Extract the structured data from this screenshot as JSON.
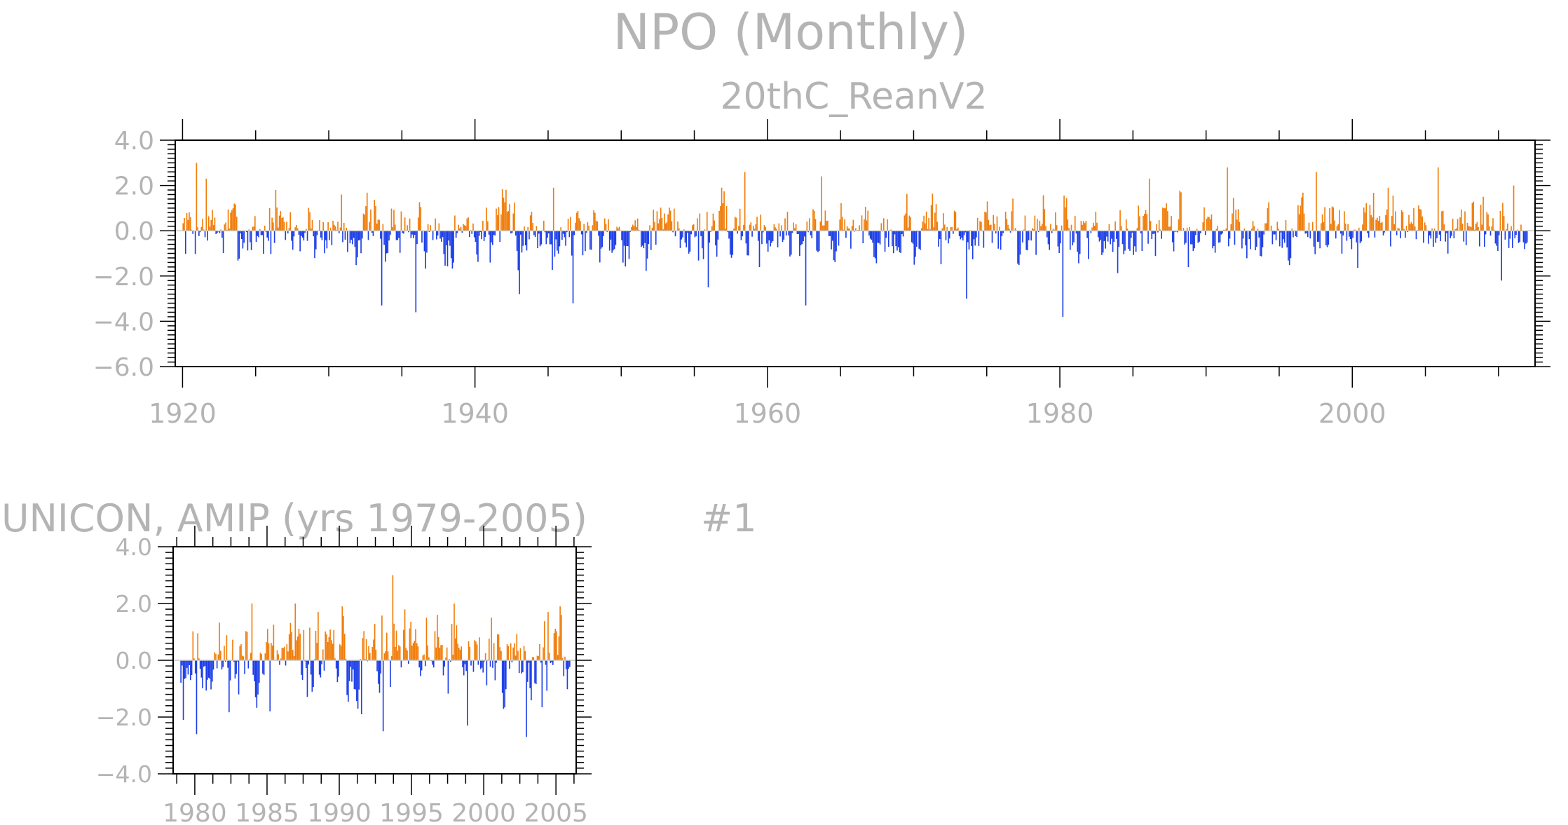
{
  "page": {
    "title": "NPO (Monthly)",
    "subtitle": "20thC_ReanV2",
    "panel2_title": "UNICON, AMIP (yrs 1979-2005)",
    "panel2_tag": "#1"
  },
  "colors": {
    "positive": "#f07d0a",
    "negative": "#1c3ee6",
    "axis": "#000000",
    "text": "#b4b4b4",
    "zero_line": "#c8c8c8"
  },
  "chart_data": [
    {
      "type": "bar",
      "title": "NPO (Monthly)",
      "subtitle": "20thC_ReanV2",
      "x_range": [
        1919.5,
        2012.5
      ],
      "data_start": 1920.0,
      "data_end": 2012.0,
      "ylim": [
        -6.0,
        4.0
      ],
      "yticks": [
        -6.0,
        -4.0,
        -2.0,
        0.0,
        2.0,
        4.0
      ],
      "ytick_labels": [
        "−6.0",
        "−4.0",
        "−2.0",
        "0.0",
        "2.0",
        "4.0"
      ],
      "xticks": [
        1920,
        1940,
        1960,
        1980,
        2000
      ],
      "xtick_labels": [
        "1920",
        "1940",
        "1960",
        "1980",
        "2000"
      ],
      "grid": false,
      "legend": "none",
      "peaks": [
        {
          "x": 1920.9,
          "y": 3.0
        },
        {
          "x": 1921.6,
          "y": 2.3
        },
        {
          "x": 1926.3,
          "y": 1.8
        },
        {
          "x": 1930.8,
          "y": 1.6
        },
        {
          "x": 1933.6,
          "y": -3.3
        },
        {
          "x": 1935.9,
          "y": -3.6
        },
        {
          "x": 1943.0,
          "y": -2.8
        },
        {
          "x": 1945.3,
          "y": 1.9
        },
        {
          "x": 1946.7,
          "y": -3.2
        },
        {
          "x": 1955.9,
          "y": -2.5
        },
        {
          "x": 1958.4,
          "y": 2.6
        },
        {
          "x": 1962.6,
          "y": -3.3
        },
        {
          "x": 1963.7,
          "y": 2.4
        },
        {
          "x": 1973.6,
          "y": -3.0
        },
        {
          "x": 1980.2,
          "y": -3.8
        },
        {
          "x": 1986.1,
          "y": 2.3
        },
        {
          "x": 1991.4,
          "y": 2.8
        },
        {
          "x": 1997.5,
          "y": 2.6
        },
        {
          "x": 2005.8,
          "y": 2.8
        },
        {
          "x": 2010.2,
          "y": -2.2
        },
        {
          "x": 2011.0,
          "y": 2.0
        }
      ]
    },
    {
      "type": "bar",
      "title": "UNICON, AMIP (yrs 1979-2005)",
      "x_range": [
        1978.5,
        2006.4
      ],
      "data_start": 1979.0,
      "data_end": 2006.0,
      "ylim": [
        -4.0,
        4.0
      ],
      "yticks": [
        -4.0,
        -2.0,
        0.0,
        2.0,
        4.0
      ],
      "ytick_labels": [
        "−4.0",
        "−2.0",
        "0.0",
        "2.0",
        "4.0"
      ],
      "xticks": [
        1980,
        1985,
        1990,
        1995,
        2000,
        2005
      ],
      "xtick_labels": [
        "1980",
        "1985",
        "1990",
        "1995",
        "2000",
        "2005"
      ],
      "grid": false,
      "legend": "none",
      "peaks": [
        {
          "x": 1979.2,
          "y": -2.1
        },
        {
          "x": 1980.1,
          "y": -2.6
        },
        {
          "x": 1983.0,
          "y": -1.2
        },
        {
          "x": 1983.9,
          "y": 2.0
        },
        {
          "x": 1985.2,
          "y": -1.8
        },
        {
          "x": 1986.9,
          "y": 2.0
        },
        {
          "x": 1988.5,
          "y": 1.7
        },
        {
          "x": 1990.2,
          "y": 1.9
        },
        {
          "x": 1991.5,
          "y": -1.9
        },
        {
          "x": 1993.0,
          "y": -2.5
        },
        {
          "x": 1993.7,
          "y": 3.0
        },
        {
          "x": 1996.0,
          "y": 1.5
        },
        {
          "x": 1997.9,
          "y": 2.0
        },
        {
          "x": 1998.8,
          "y": -2.3
        },
        {
          "x": 2000.5,
          "y": 1.5
        },
        {
          "x": 2002.9,
          "y": -2.7
        },
        {
          "x": 2004.4,
          "y": 1.7
        },
        {
          "x": 2005.3,
          "y": 1.6
        }
      ]
    }
  ]
}
